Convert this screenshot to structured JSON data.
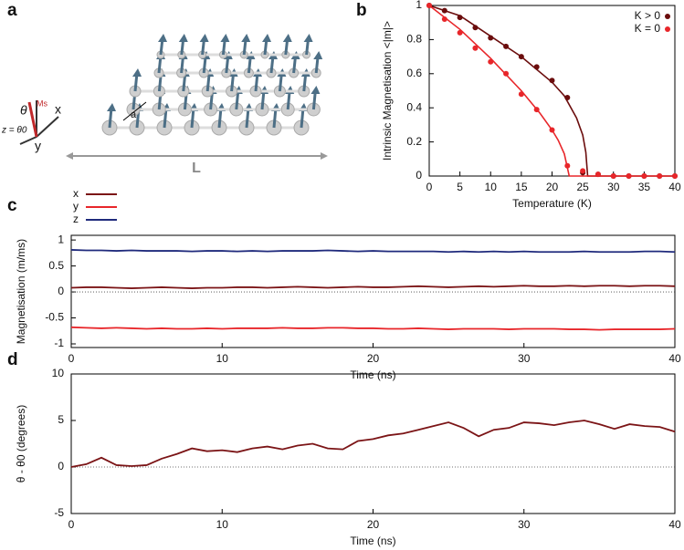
{
  "panel_labels": [
    "a",
    "b",
    "c",
    "d"
  ],
  "illustration": {
    "axis_x": "x",
    "axis_y": "y",
    "angle": "θ",
    "z_label": "z = θ0",
    "moment": "Ms",
    "spacing": "a",
    "length": "L"
  },
  "chart_data": [
    {
      "type": "scatter",
      "xlabel": "Temperature (K)",
      "ylabel": "Intrinsic Magnetisation <|m|>",
      "x": [
        0,
        2.5,
        5,
        7.5,
        10,
        12.5,
        15,
        17.5,
        20,
        22.5,
        25,
        27.5,
        30,
        32.5,
        35,
        37.5,
        40
      ],
      "series": [
        {
          "name": "K > 0",
          "color": "#6b0d0d",
          "values": [
            1,
            0.97,
            0.93,
            0.87,
            0.81,
            0.76,
            0.7,
            0.64,
            0.56,
            0.46,
            0.02,
            0.01,
            0,
            0,
            0,
            0,
            0
          ]
        },
        {
          "name": "K = 0",
          "color": "#e8262a",
          "values": [
            1,
            0.92,
            0.84,
            0.75,
            0.67,
            0.6,
            0.48,
            0.39,
            0.27,
            0.06,
            0.03,
            0.01,
            0,
            0,
            0,
            0,
            0
          ]
        }
      ],
      "fits": [
        {
          "color": "#6b0d0d",
          "x": [
            0,
            5,
            10,
            15,
            20,
            22,
            24,
            25,
            25.5,
            25.8,
            40
          ],
          "values": [
            1,
            0.94,
            0.82,
            0.7,
            0.55,
            0.47,
            0.34,
            0.24,
            0.14,
            0,
            0
          ]
        },
        {
          "color": "#e8262a",
          "x": [
            0,
            5,
            10,
            15,
            18,
            20,
            21,
            22,
            22.8,
            40
          ],
          "values": [
            1,
            0.86,
            0.69,
            0.5,
            0.37,
            0.27,
            0.21,
            0.13,
            0,
            0
          ]
        }
      ],
      "xlim": [
        0,
        40
      ],
      "ylim": [
        0,
        1
      ],
      "xticks": [
        0,
        5,
        10,
        15,
        20,
        25,
        30,
        35,
        40
      ],
      "yticks": [
        0,
        0.2,
        0.4,
        0.6,
        0.8,
        1
      ],
      "legend": "upper right"
    },
    {
      "type": "line",
      "xlabel": "Time (ns)",
      "ylabel": "Magnetisation (m/ms)",
      "x": [
        0,
        1,
        2,
        3,
        4,
        5,
        6,
        7,
        8,
        9,
        10,
        11,
        12,
        13,
        14,
        15,
        16,
        17,
        18,
        19,
        20,
        21,
        22,
        23,
        24,
        25,
        26,
        27,
        28,
        29,
        30,
        31,
        32,
        33,
        34,
        35,
        36,
        37,
        38,
        39,
        40
      ],
      "series": [
        {
          "name": "x",
          "color": "#7b1416",
          "values": [
            0.08,
            0.09,
            0.09,
            0.08,
            0.07,
            0.08,
            0.09,
            0.08,
            0.07,
            0.08,
            0.08,
            0.09,
            0.09,
            0.08,
            0.09,
            0.1,
            0.09,
            0.08,
            0.09,
            0.1,
            0.09,
            0.09,
            0.1,
            0.11,
            0.1,
            0.09,
            0.1,
            0.11,
            0.1,
            0.11,
            0.12,
            0.11,
            0.11,
            0.12,
            0.11,
            0.12,
            0.12,
            0.11,
            0.12,
            0.12,
            0.11
          ]
        },
        {
          "name": "y",
          "color": "#e8262a",
          "values": [
            -0.68,
            -0.69,
            -0.7,
            -0.69,
            -0.7,
            -0.71,
            -0.7,
            -0.71,
            -0.71,
            -0.7,
            -0.71,
            -0.7,
            -0.7,
            -0.7,
            -0.69,
            -0.7,
            -0.7,
            -0.69,
            -0.69,
            -0.7,
            -0.7,
            -0.71,
            -0.71,
            -0.7,
            -0.71,
            -0.72,
            -0.71,
            -0.71,
            -0.71,
            -0.72,
            -0.71,
            -0.71,
            -0.71,
            -0.72,
            -0.72,
            -0.73,
            -0.72,
            -0.72,
            -0.72,
            -0.72,
            -0.71
          ]
        },
        {
          "name": "z",
          "color": "#1f2a7c",
          "values": [
            0.81,
            0.8,
            0.8,
            0.79,
            0.8,
            0.79,
            0.79,
            0.79,
            0.78,
            0.79,
            0.79,
            0.78,
            0.79,
            0.78,
            0.79,
            0.79,
            0.79,
            0.8,
            0.79,
            0.78,
            0.79,
            0.78,
            0.78,
            0.78,
            0.78,
            0.77,
            0.78,
            0.77,
            0.78,
            0.77,
            0.78,
            0.77,
            0.77,
            0.77,
            0.78,
            0.77,
            0.77,
            0.77,
            0.78,
            0.78,
            0.77
          ]
        }
      ],
      "xlim": [
        0,
        40
      ],
      "ylim": [
        -1.07,
        1.09
      ],
      "xticks": [
        0,
        10,
        20,
        30,
        40
      ],
      "yticks": [
        1,
        0.5,
        0,
        -0.5,
        -1
      ],
      "reference_line": 0,
      "legend": "outside top left"
    },
    {
      "type": "line",
      "xlabel": "Time (ns)",
      "ylabel": "θ - θ0 (degrees)",
      "x": [
        0,
        1,
        2,
        3,
        4,
        5,
        6,
        7,
        8,
        9,
        10,
        11,
        12,
        13,
        14,
        15,
        16,
        17,
        18,
        19,
        20,
        21,
        22,
        23,
        24,
        25,
        26,
        27,
        28,
        29,
        30,
        31,
        32,
        33,
        34,
        35,
        36,
        37,
        38,
        39,
        40
      ],
      "series": [
        {
          "color": "#7b1416",
          "values": [
            0,
            0.3,
            1.0,
            0.2,
            0.1,
            0.2,
            0.9,
            1.4,
            2.0,
            1.7,
            1.8,
            1.6,
            2.0,
            2.2,
            1.9,
            2.3,
            2.5,
            2.0,
            1.9,
            2.8,
            3.0,
            3.4,
            3.6,
            4.0,
            4.4,
            4.8,
            4.2,
            3.3,
            4.0,
            4.2,
            4.8,
            4.7,
            4.5,
            4.8,
            5.0,
            4.6,
            4.1,
            4.6,
            4.4,
            4.3,
            3.8
          ]
        }
      ],
      "xlim": [
        0,
        40
      ],
      "ylim": [
        -5,
        10
      ],
      "xticks": [
        0,
        10,
        20,
        30,
        40
      ],
      "yticks": [
        10,
        5,
        0,
        -5
      ],
      "reference_line": 0
    }
  ]
}
